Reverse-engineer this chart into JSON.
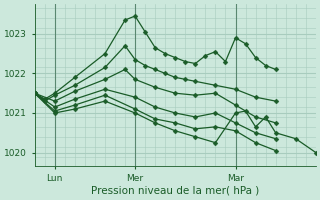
{
  "title": "Pression niveau de la mer( hPa )",
  "bg_color": "#cce8dc",
  "grid_color": "#a8ccbe",
  "line_color": "#1a5c28",
  "vline_color": "#5a8870",
  "ylim": [
    1019.65,
    1023.75
  ],
  "xlim": [
    0,
    14
  ],
  "yticks": [
    1020,
    1021,
    1022,
    1023
  ],
  "xtick_labels": [
    "Lun",
    "Mer",
    "Mar"
  ],
  "xtick_positions": [
    1.0,
    5.0,
    10.0
  ],
  "series": [
    {
      "x": [
        0,
        0.5,
        1.0,
        2.0,
        3.5,
        4.5,
        5.0,
        5.5,
        6.0,
        6.5,
        7.0,
        7.5,
        8.0,
        8.5,
        9.0,
        9.5,
        10.0,
        10.5,
        11.0,
        11.5,
        12.0
      ],
      "y": [
        1021.5,
        1021.35,
        1021.5,
        1021.9,
        1022.5,
        1023.35,
        1023.45,
        1023.05,
        1022.65,
        1022.5,
        1022.4,
        1022.3,
        1022.25,
        1022.45,
        1022.55,
        1022.3,
        1022.9,
        1022.75,
        1022.4,
        1022.2,
        1022.1
      ]
    },
    {
      "x": [
        0,
        0.5,
        1.0,
        2.0,
        3.5,
        4.5,
        5.0,
        5.5,
        6.0,
        6.5,
        7.0,
        7.5,
        8.0,
        9.0,
        10.0,
        11.0,
        12.0
      ],
      "y": [
        1021.5,
        1021.3,
        1021.45,
        1021.7,
        1022.15,
        1022.7,
        1022.35,
        1022.2,
        1022.1,
        1022.0,
        1021.9,
        1021.85,
        1021.8,
        1021.7,
        1021.6,
        1021.4,
        1021.3
      ]
    },
    {
      "x": [
        0,
        1.0,
        2.0,
        3.5,
        4.5,
        5.0,
        6.0,
        7.0,
        8.0,
        9.0,
        10.0,
        11.0,
        12.0
      ],
      "y": [
        1021.5,
        1021.3,
        1021.55,
        1021.85,
        1022.1,
        1021.85,
        1021.65,
        1021.5,
        1021.45,
        1021.5,
        1021.2,
        1020.9,
        1020.75
      ]
    },
    {
      "x": [
        0,
        1.0,
        2.0,
        3.5,
        5.0,
        6.0,
        7.0,
        8.0,
        9.0,
        10.0,
        11.0,
        12.0
      ],
      "y": [
        1021.5,
        1021.15,
        1021.35,
        1021.6,
        1021.4,
        1021.15,
        1021.0,
        1020.9,
        1021.0,
        1020.75,
        1020.5,
        1020.35
      ]
    },
    {
      "x": [
        0,
        1.0,
        2.0,
        3.5,
        5.0,
        6.0,
        7.0,
        8.0,
        9.0,
        10.0,
        11.0,
        12.0
      ],
      "y": [
        1021.5,
        1021.05,
        1021.2,
        1021.45,
        1021.1,
        1020.85,
        1020.75,
        1020.6,
        1020.65,
        1020.55,
        1020.25,
        1020.05
      ]
    },
    {
      "x": [
        0,
        1.0,
        2.0,
        3.5,
        5.0,
        6.0,
        7.0,
        8.0,
        9.0,
        10.0,
        10.5,
        11.0,
        11.5,
        12.0,
        13.0,
        14.0
      ],
      "y": [
        1021.5,
        1021.0,
        1021.1,
        1021.3,
        1021.0,
        1020.75,
        1020.55,
        1020.4,
        1020.25,
        1021.0,
        1021.05,
        1020.65,
        1020.9,
        1020.5,
        1020.35,
        1020.0
      ]
    }
  ],
  "marker_size": 2.5,
  "linewidth": 0.9
}
